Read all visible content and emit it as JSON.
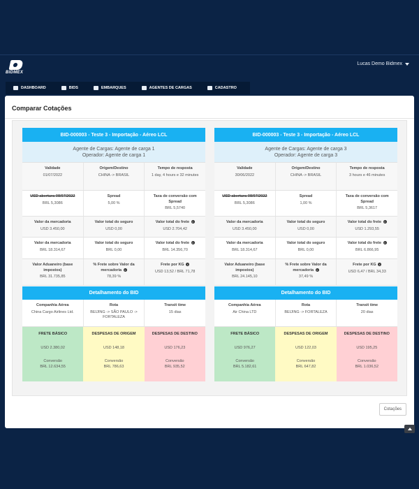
{
  "brand": {
    "name": "BIDMEX"
  },
  "user": {
    "name": "Lucas Demo Bidmex"
  },
  "nav": [
    {
      "label": "DASHBOARD",
      "icon": "dashboard-icon"
    },
    {
      "label": "BIDS",
      "icon": "bids-icon"
    },
    {
      "label": "EMBARQUES",
      "icon": "truck-icon"
    },
    {
      "label": "AGENTES DE CARGAS",
      "icon": "people-icon"
    },
    {
      "label": "CADASTRO",
      "icon": "user-icon"
    }
  ],
  "page": {
    "title": "Comparar Cotações",
    "button": "Cotações"
  },
  "labels": {
    "validade": "Validade",
    "origem": "Origem/Destino",
    "tempo": "Tempo de resposta",
    "usd_abertura": "USD abertura 08/07/2022",
    "spread": "Spread",
    "taxa": "Taxa de conversão com Spread",
    "valor_merc": "Valor da mercadoria",
    "valor_seguro": "Valor total do seguro",
    "valor_frete": "Valor total do frete",
    "valor_aduaneiro": "Valor Aduaneiro (base impostos)",
    "perc_frete": "% Frete sobre Valor da mercadoria",
    "frete_kg": "Frete por KG",
    "detalhamento": "Detalhamento do BID",
    "companhia": "Companhia Aérea",
    "rota": "Rota",
    "transit": "Transit time",
    "frete_basico": "FRETE BÁSICO",
    "desp_origem": "DESPESAS DE ORIGEM",
    "desp_destino": "DESPESAS DE DESTINO",
    "conversao": "Conversão"
  },
  "bids": [
    {
      "title": "BID-000003 - Teste 3 - Importação - Aéreo LCL",
      "agent": "Agente de Cargas: Agente de carga 1",
      "operator": "Operador: Agente de carga 1",
      "validade": "01/07/2022",
      "origem": "CHINA -> BRASIL",
      "tempo": "1 day, 4 hours e 32 minutes",
      "usd_abertura": "BRL 5,3086",
      "spread": "5,00 %",
      "taxa": "BRL 5,5740",
      "merc_usd": "USD 3.450,00",
      "seguro_usd": "USD 0,00",
      "frete_usd": "USD 2.704,42",
      "merc_brl": "BRL 18.314,67",
      "seguro_brl": "BRL 0,00",
      "frete_brl": "BRL 14.356,70",
      "aduaneiro": "BRL 31.735,85",
      "perc_frete": "78,39 %",
      "frete_kg": "USD 13,52 / BRL 71,78",
      "companhia": "China Cargo Airlines Ltd.",
      "rota": "BEIJING -> SÃO PAULO -> FORTALEZA",
      "transit": "15 dias",
      "frete_basico": "USD 2.380,02",
      "frete_basico_brl": "BRL 12.634,55",
      "desp_origem": "USD 148,18",
      "desp_origem_brl": "BRL 786,63",
      "desp_destino": "USD 176,23",
      "desp_destino_brl": "BRL 935,52"
    },
    {
      "title": "BID-000003 - Teste 3 - Importação - Aéreo LCL",
      "agent": "Agente de Cargas: Agente de carga 3",
      "operator": "Operador: Agente de carga 3",
      "validade": "30/06/2022",
      "origem": "CHINA -> BRASIL",
      "tempo": "3 hours e 46 minutes",
      "usd_abertura": "BRL 5,3086",
      "spread": "1,00 %",
      "taxa": "BRL 5,3617",
      "merc_usd": "USD 3.450,00",
      "seguro_usd": "USD 0,00",
      "frete_usd": "USD 1.293,55",
      "merc_brl": "BRL 18.314,67",
      "seguro_brl": "BRL 0,00",
      "frete_brl": "BRL 6.866,95",
      "aduaneiro": "BRL 24.145,10",
      "perc_frete": "37,49 %",
      "frete_kg": "USD 6,47 / BRL 34,33",
      "companhia": "Air China LTD",
      "rota": "BEIJING -> FORTALEZA",
      "transit": "20 dias",
      "frete_basico": "USD 976,27",
      "frete_basico_brl": "BRL 5.182,61",
      "desp_origem": "USD 122,03",
      "desp_origem_brl": "BRL 647,82",
      "desp_destino": "USD 195,25",
      "desp_destino_brl": "BRL 1.036,52"
    }
  ]
}
